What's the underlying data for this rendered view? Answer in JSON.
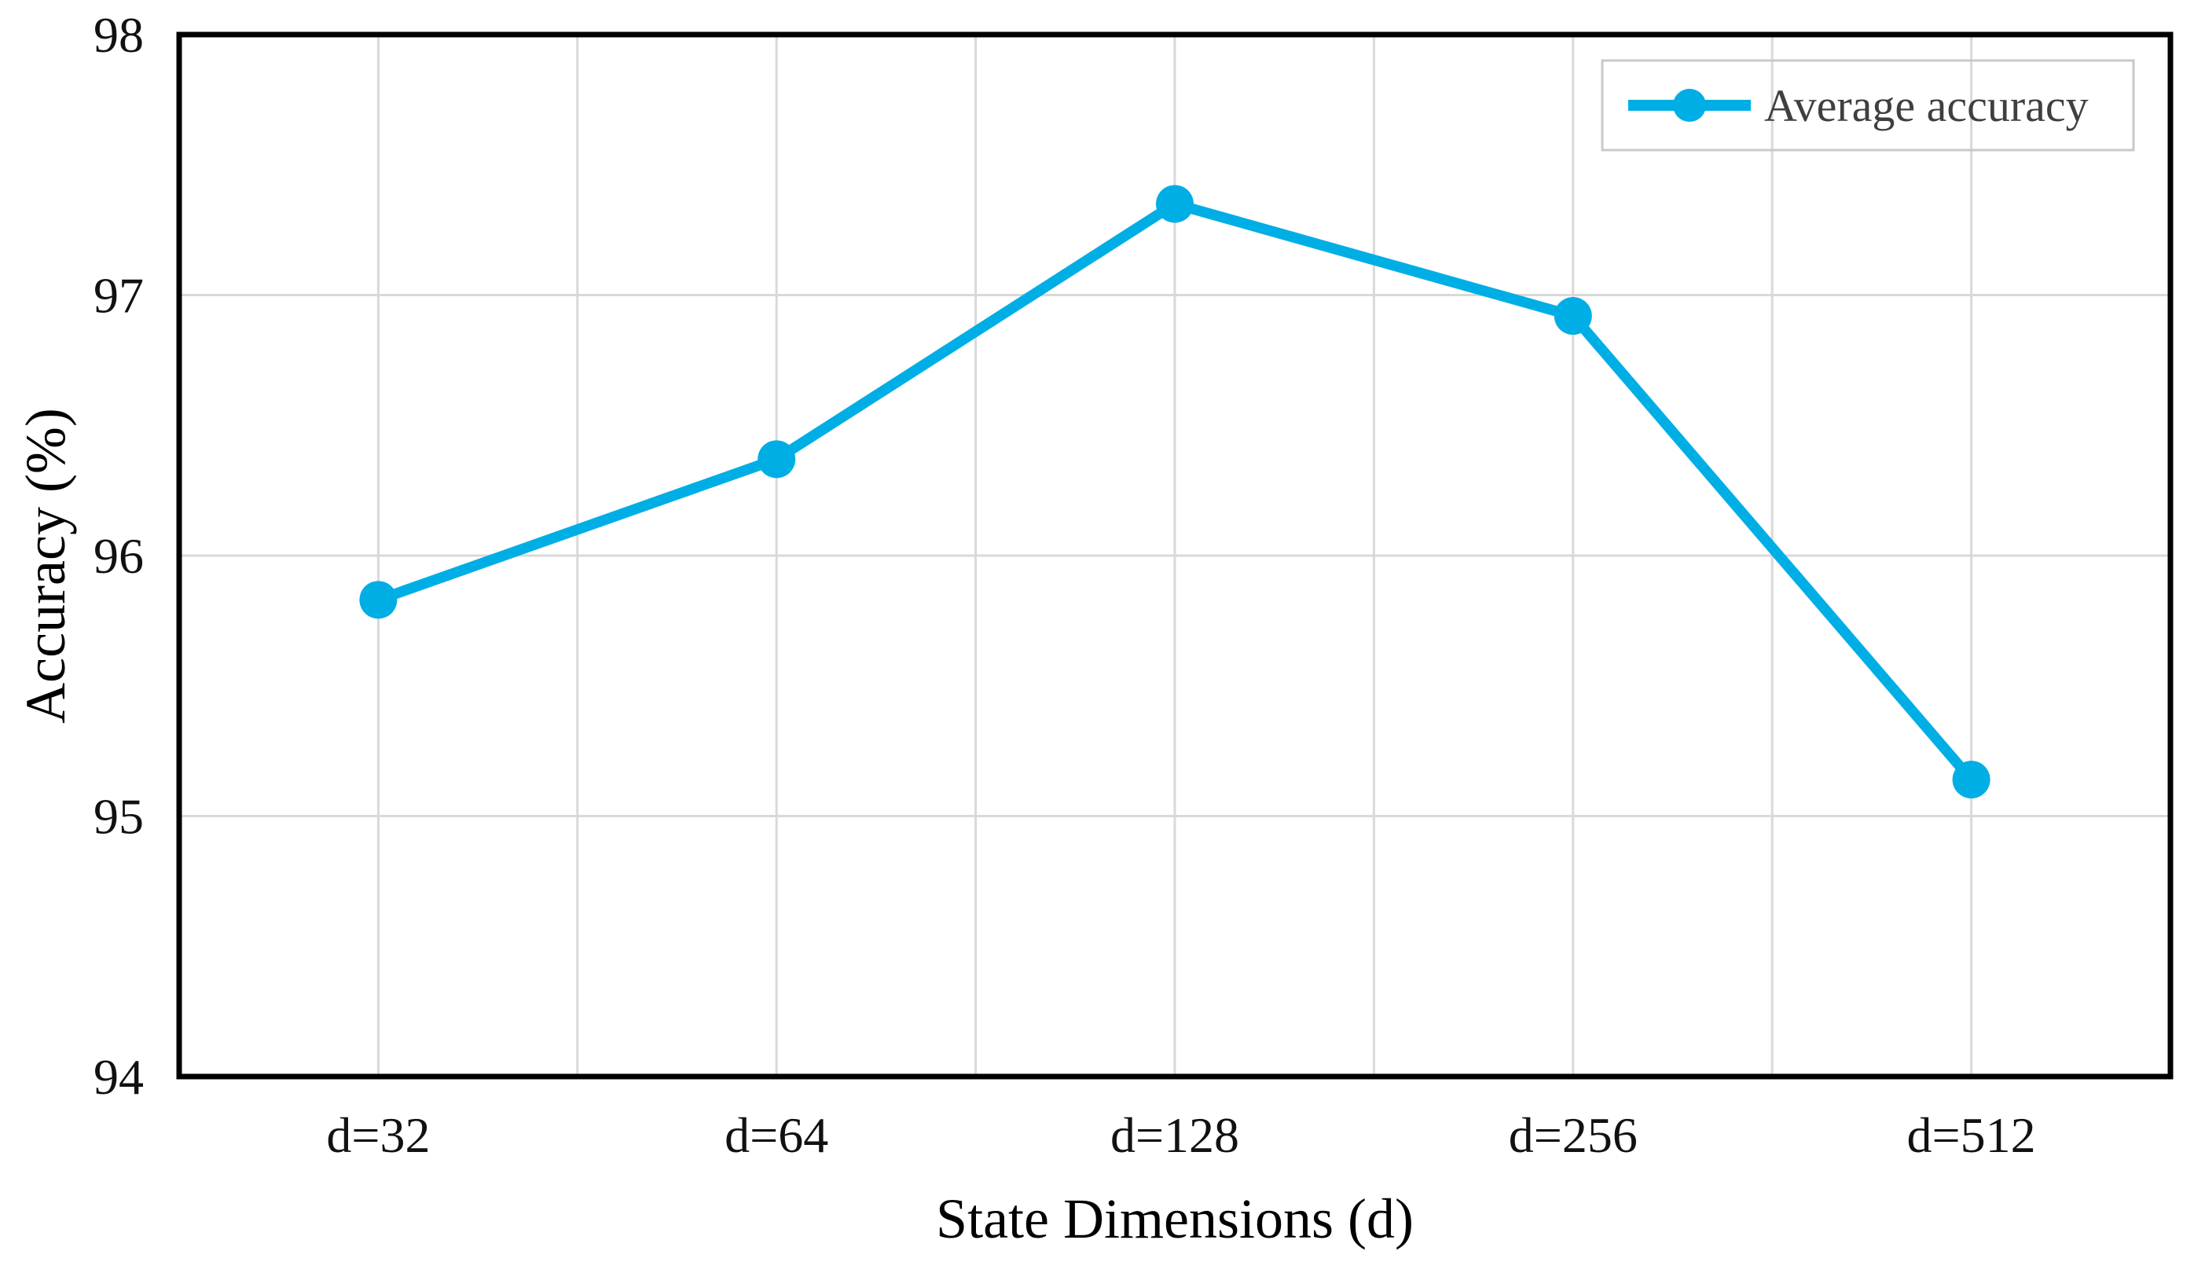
{
  "figure": {
    "background": "#FFFFFF"
  },
  "chart_data": {
    "type": "line",
    "title": "",
    "categories": [
      "d=32",
      "d=64",
      "d=128",
      "d=256",
      "d=512"
    ],
    "series": [
      {
        "name": "Average accuracy",
        "values": [
          95.83,
          96.37,
          97.35,
          96.92,
          95.14
        ],
        "color": "#00AEE6",
        "marker": "circle"
      }
    ],
    "xlabel": "State Dimensions (d)",
    "ylabel": "Accuracy (%)",
    "ylim": [
      94,
      98
    ],
    "yticks": [
      98,
      97,
      96,
      95,
      94
    ],
    "ytick_interval": 1,
    "grid": true,
    "x_gridlines_per_category": 2,
    "legend_position": "top-right",
    "legend_entries": [
      "Average accuracy"
    ]
  },
  "style": {
    "accent": "#00AEE6",
    "gridline_color": "#D9D9D9",
    "plot_border_color": "#000000",
    "legend_border_color": "#C9C9C9",
    "tick_label_color": "#111111",
    "axis_title_color": "#000000",
    "legend_text_color": "#3F3F3F"
  }
}
